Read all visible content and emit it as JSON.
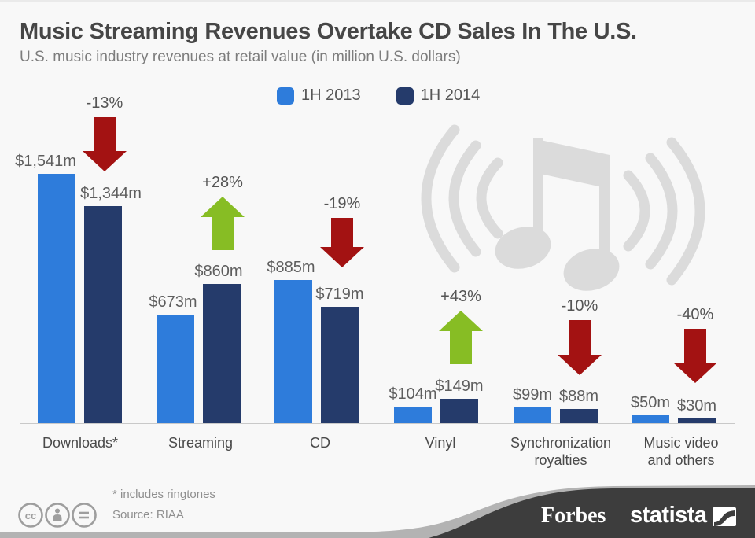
{
  "header": {
    "title": "Music Streaming Revenues Overtake CD Sales In The U.S.",
    "subtitle": "U.S. music industry revenues at retail value (in million U.S. dollars)"
  },
  "legend": {
    "items": [
      {
        "label": "1H 2013",
        "color": "#2e7cdb"
      },
      {
        "label": "1H 2014",
        "color": "#253b6b"
      }
    ]
  },
  "chart_data": {
    "type": "bar",
    "title": "Music Streaming Revenues Overtake CD Sales In The U.S.",
    "subtitle": "U.S. music industry revenues at retail value (in million U.S. dollars)",
    "unit": "million U.S. dollars",
    "categories": [
      "Downloads*",
      "Streaming",
      "CD",
      "Vinyl",
      "Synchronization royalties",
      "Music video and others"
    ],
    "category_lines": [
      [
        "Downloads*"
      ],
      [
        "Streaming"
      ],
      [
        "CD"
      ],
      [
        "Vinyl"
      ],
      [
        "Synchronization",
        "royalties"
      ],
      [
        "Music video",
        "and others"
      ]
    ],
    "series": [
      {
        "name": "1H 2013",
        "color": "#2e7cdb",
        "values": [
          1541,
          673,
          885,
          104,
          99,
          50
        ],
        "value_labels": [
          "$1,541m",
          "$673m",
          "$885m",
          "$104m",
          "$99m",
          "$50m"
        ]
      },
      {
        "name": "1H 2014",
        "color": "#253b6b",
        "values": [
          1344,
          860,
          719,
          149,
          88,
          30
        ],
        "value_labels": [
          "$1,344m",
          "$860m",
          "$719m",
          "$149m",
          "$88m",
          "$30m"
        ]
      }
    ],
    "changes": [
      {
        "label": "-13%",
        "direction": "down"
      },
      {
        "label": "+28%",
        "direction": "up"
      },
      {
        "label": "-19%",
        "direction": "down"
      },
      {
        "label": "+43%",
        "direction": "up"
      },
      {
        "label": "-10%",
        "direction": "down"
      },
      {
        "label": "-40%",
        "direction": "down"
      }
    ],
    "ylim": [
      0,
      1600
    ],
    "grid": false,
    "legend_position": "top"
  },
  "colors": {
    "bar_2013": "#2e7cdb",
    "bar_2014": "#253b6b",
    "increase_arrow": "#87bd24",
    "decrease_arrow": "#a31212",
    "footer_ribbon": "#3d3d3d",
    "watermark": "#dbdbdb",
    "background": "#f8f8f8"
  },
  "footer": {
    "note": "* includes ringtones",
    "source": "Source: RIAA",
    "brands": {
      "forbes": "Forbes",
      "statista": "statista"
    }
  }
}
